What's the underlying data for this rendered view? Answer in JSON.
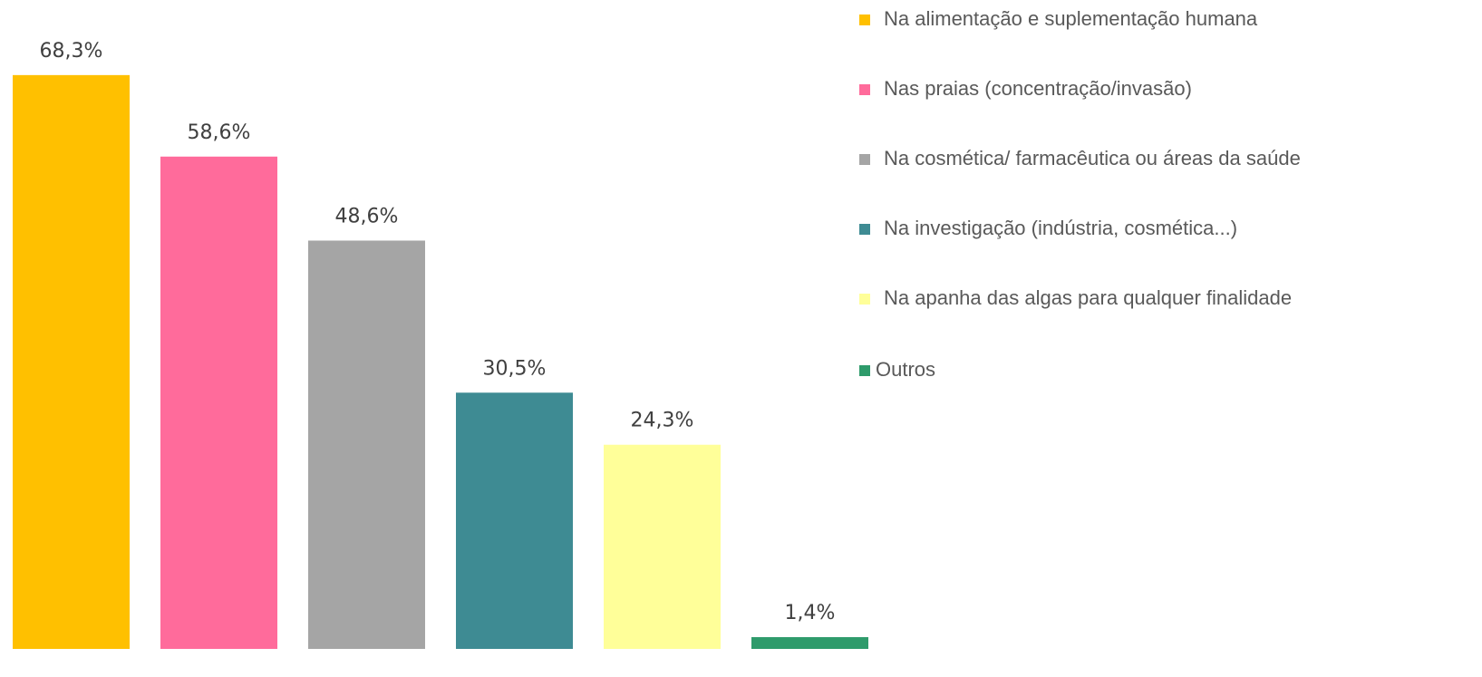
{
  "chart_data": {
    "type": "bar",
    "categories": [
      null
    ],
    "series": [
      {
        "name": "Na alimentação e suplementação humana",
        "color": "#ffc000",
        "values": [
          68.3
        ],
        "value_labels": [
          "68,3%"
        ]
      },
      {
        "name": "Nas praias (concentração/invasão)",
        "color": "#ff6b9b",
        "values": [
          58.6
        ],
        "value_labels": [
          "58,6%"
        ]
      },
      {
        "name": "Na cosmética/ farmacêutica ou áreas da saúde",
        "color": "#a5a5a5",
        "values": [
          48.6
        ],
        "value_labels": [
          "48,6%"
        ]
      },
      {
        "name": "Na investigação (indústria, cosmética...)",
        "color": "#3e8b93",
        "values": [
          30.5
        ],
        "value_labels": [
          "30,5%"
        ]
      },
      {
        "name": "Na apanha das algas para qualquer finalidade",
        "color": "#ffff99",
        "values": [
          24.3
        ],
        "value_labels": [
          "24,3%"
        ]
      },
      {
        "name": "Outros",
        "color": "#2e9b6b",
        "values": [
          1.4
        ],
        "value_labels": [
          "1,4%"
        ]
      }
    ],
    "legend": "top-right"
  }
}
